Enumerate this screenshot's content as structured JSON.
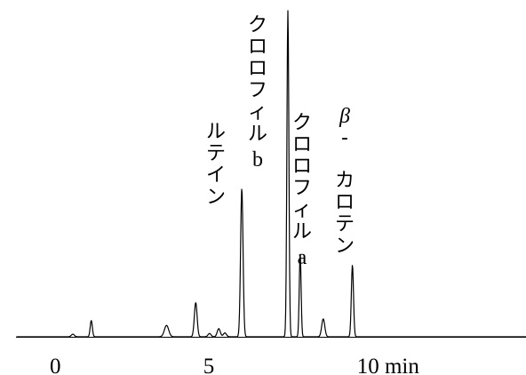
{
  "chart_data": {
    "type": "line",
    "xlabel": "",
    "ylabel": "",
    "xlim": [
      -1.3,
      15.3
    ],
    "ylim": [
      0,
      100
    ],
    "grid": false,
    "x_ticks": [
      {
        "value": 0,
        "label": "0"
      },
      {
        "value": 5,
        "label": "5"
      },
      {
        "value": 10,
        "label": "10 min"
      }
    ],
    "peaks": [
      {
        "x": 0.55,
        "height": 0.8,
        "width": 0.05
      },
      {
        "x": 1.15,
        "height": 5,
        "width": 0.035
      },
      {
        "x": 3.6,
        "height": 3.5,
        "width": 0.07
      },
      {
        "x": 4.55,
        "height": 10.5,
        "width": 0.045
      },
      {
        "x": 5.0,
        "height": 1,
        "width": 0.05
      },
      {
        "x": 5.3,
        "height": 2.5,
        "width": 0.05
      },
      {
        "x": 5.5,
        "height": 1.2,
        "width": 0.05
      },
      {
        "x": 6.05,
        "height": 45.5,
        "width": 0.04
      },
      {
        "x": 7.55,
        "height": 100,
        "width": 0.032
      },
      {
        "x": 7.95,
        "height": 25.5,
        "width": 0.03
      },
      {
        "x": 8.7,
        "height": 5.5,
        "width": 0.05
      },
      {
        "x": 9.65,
        "height": 22,
        "width": 0.035
      }
    ],
    "annotations": [
      {
        "name": "lutein",
        "text": "ルテイン",
        "peak_x": 6.05
      },
      {
        "name": "chlorophyll-b",
        "text": "クロロフィル",
        "suffix": "b",
        "peak_x": 7.55
      },
      {
        "name": "chlorophyll-a",
        "text": "クロロフィル",
        "suffix": "a",
        "peak_x": 7.95
      },
      {
        "name": "beta-carotene",
        "text": "カロテン",
        "prefix": "β",
        "separator": "‐",
        "peak_x": 9.65
      }
    ],
    "line_color": "#000000",
    "axis_color": "#000000"
  }
}
